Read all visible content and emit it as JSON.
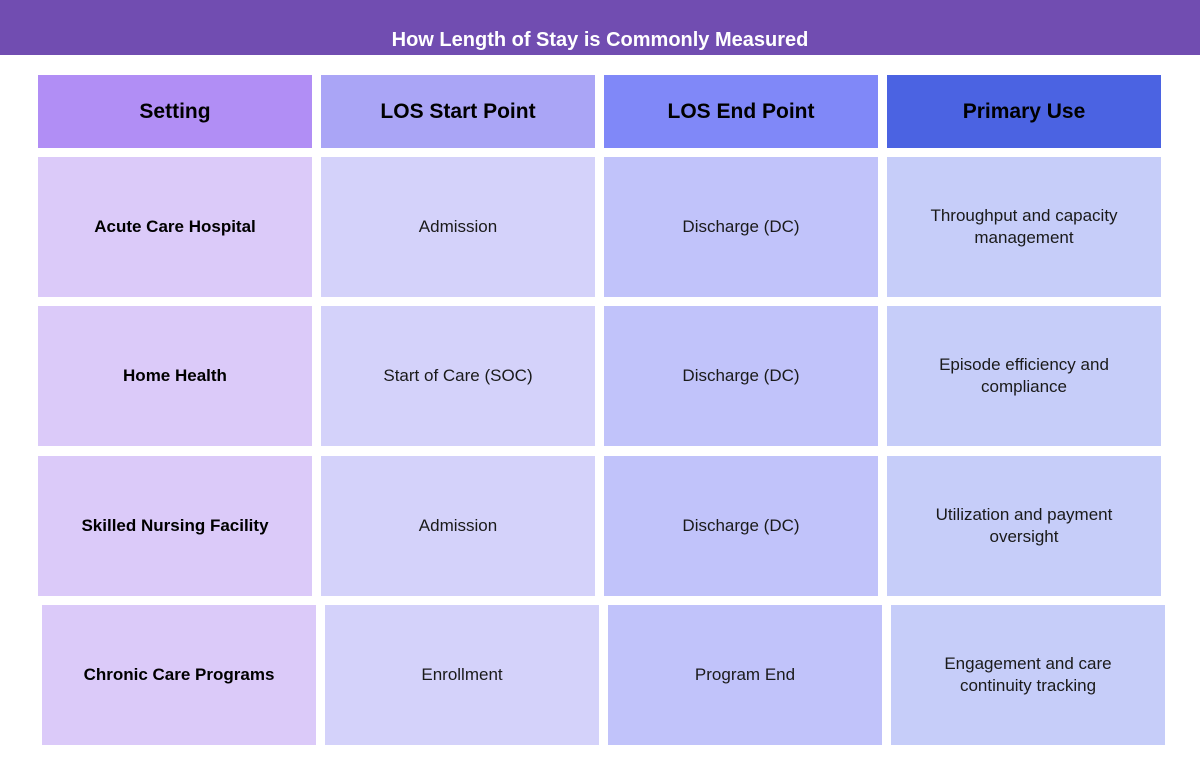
{
  "title": "How Length of Stay is Commonly Measured",
  "colors": {
    "title_bar": "#714db1",
    "header": [
      "#b18ef5",
      "#aaa5f6",
      "#8088f8",
      "#4b63e2"
    ],
    "body": [
      "#dbcaf9",
      "#d4d2fa",
      "#c1c3fa",
      "#c6cdf9"
    ]
  },
  "table": {
    "headers": [
      "Setting",
      "LOS Start Point",
      "LOS End Point",
      "Primary Use"
    ],
    "rows": [
      [
        "Acute Care Hospital",
        "Admission",
        "Discharge (DC)",
        "Throughput and capacity management"
      ],
      [
        "Home Health",
        "Start of Care (SOC)",
        "Discharge (DC)",
        "Episode efficiency and compliance"
      ],
      [
        "Skilled Nursing Facility",
        "Admission",
        "Discharge (DC)",
        "Utilization and payment oversight"
      ],
      [
        "Chronic Care Programs",
        "Enrollment",
        "Program End",
        "Engagement and care continuity tracking"
      ]
    ]
  }
}
